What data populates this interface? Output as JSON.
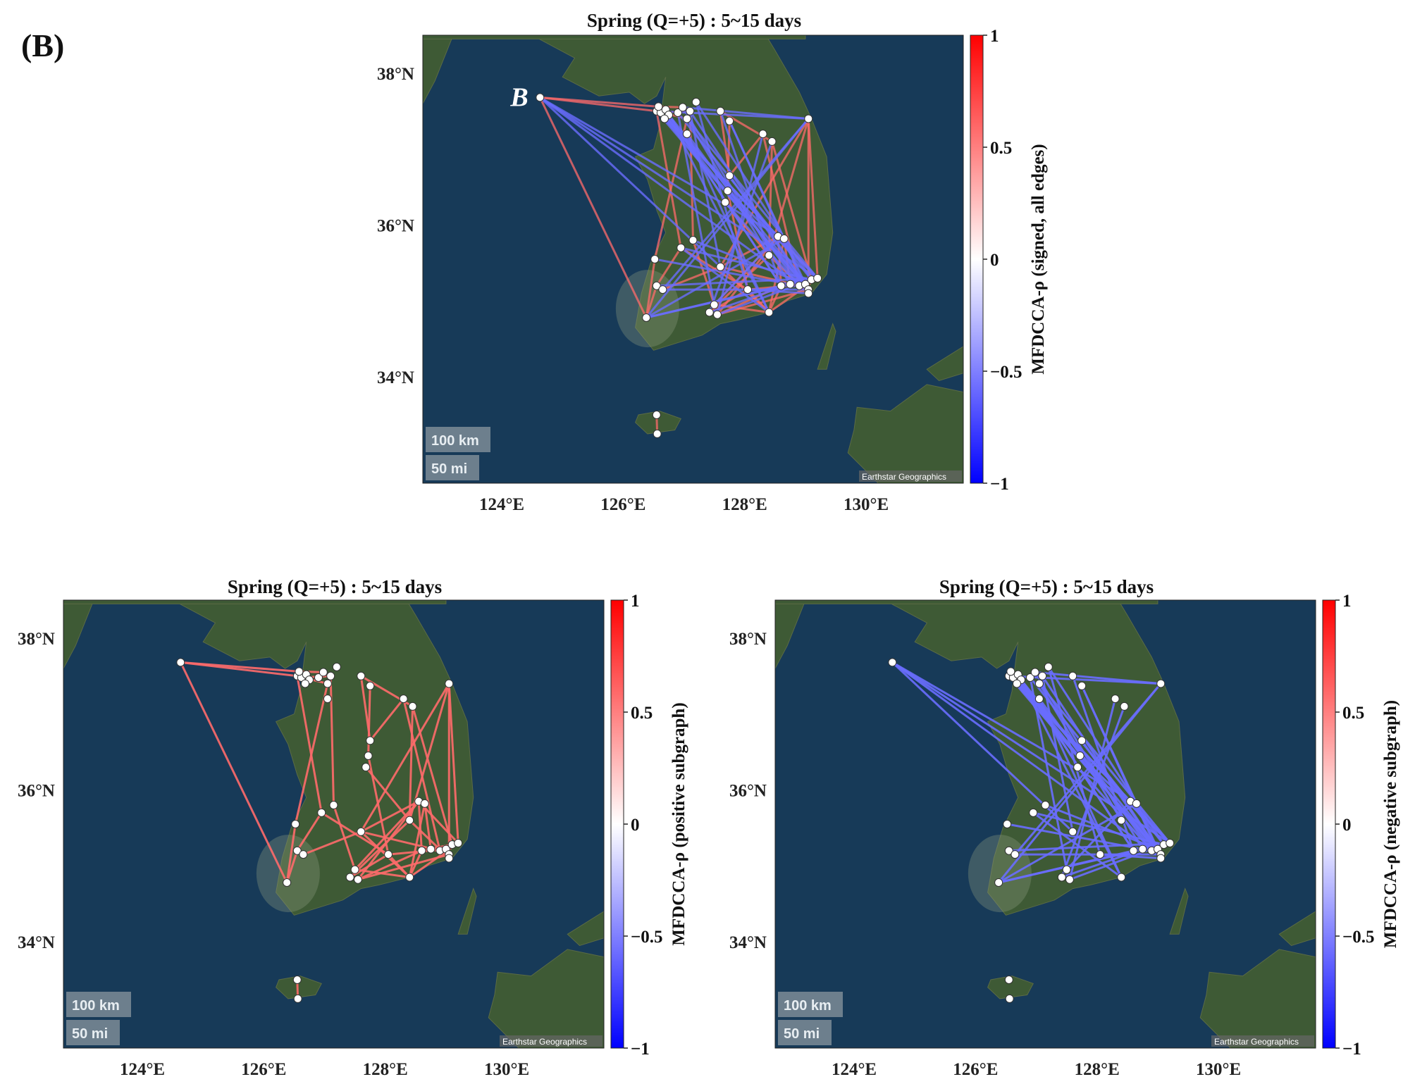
{
  "panel_label": "(B)",
  "annotation_label": "B",
  "map_credit": "Earthstar Geographics",
  "scale_bar": {
    "km": "100 km",
    "mi": "50 mi"
  },
  "axes": {
    "lat_ticks": [
      "38°N",
      "36°N",
      "34°N"
    ],
    "lon_ticks": [
      "124°E",
      "126°E",
      "128°E",
      "130°E"
    ]
  },
  "colorbar": {
    "ticks": [
      "1",
      "0.5",
      "0",
      "−0.5",
      "−1"
    ],
    "colors": {
      "max": "#ff0000",
      "mid": "#ffffff",
      "min": "#0000ff"
    }
  },
  "colors": {
    "positive_edge": "#ff6b6b",
    "negative_edge": "#6a6dff",
    "sea": "#173a58",
    "land": "#3e5a35",
    "node": "#ffffff"
  },
  "panels": [
    {
      "title": "Spring (Q=+5) : 5~15 days",
      "colorbar_label": "MFDCCA-ρ (signed, all edges)",
      "edges": "all"
    },
    {
      "title": "Spring (Q=+5) : 5~15 days",
      "colorbar_label": "MFDCCA-ρ (positive subgraph)",
      "edges": "positive"
    },
    {
      "title": "Spring (Q=+5) : 5~15 days",
      "colorbar_label": "MFDCCA-ρ (negative subgraph)",
      "edges": "negative"
    }
  ],
  "stations": [
    [
      124.63,
      37.68
    ],
    [
      126.55,
      37.5
    ],
    [
      126.62,
      37.48
    ],
    [
      126.7,
      37.52
    ],
    [
      126.58,
      37.56
    ],
    [
      126.75,
      37.45
    ],
    [
      126.68,
      37.4
    ],
    [
      126.9,
      37.48
    ],
    [
      126.98,
      37.55
    ],
    [
      127.05,
      37.4
    ],
    [
      127.1,
      37.5
    ],
    [
      127.2,
      37.62
    ],
    [
      127.05,
      37.2
    ],
    [
      127.6,
      37.5
    ],
    [
      127.75,
      37.37
    ],
    [
      128.3,
      37.2
    ],
    [
      128.45,
      37.1
    ],
    [
      129.05,
      37.4
    ],
    [
      127.75,
      36.65
    ],
    [
      127.72,
      36.45
    ],
    [
      127.68,
      36.3
    ],
    [
      126.95,
      35.7
    ],
    [
      126.52,
      35.55
    ],
    [
      127.15,
      35.8
    ],
    [
      127.6,
      35.45
    ],
    [
      128.05,
      35.15
    ],
    [
      128.55,
      35.85
    ],
    [
      128.65,
      35.82
    ],
    [
      128.4,
      35.6
    ],
    [
      128.6,
      35.2
    ],
    [
      128.75,
      35.22
    ],
    [
      128.9,
      35.2
    ],
    [
      129.0,
      35.22
    ],
    [
      129.05,
      35.15
    ],
    [
      129.1,
      35.28
    ],
    [
      129.2,
      35.3
    ],
    [
      129.05,
      35.1
    ],
    [
      126.55,
      35.2
    ],
    [
      126.65,
      35.15
    ],
    [
      127.5,
      34.95
    ],
    [
      127.55,
      34.82
    ],
    [
      127.42,
      34.85
    ],
    [
      128.4,
      34.85
    ],
    [
      126.38,
      34.78
    ],
    [
      126.55,
      33.5
    ],
    [
      126.56,
      33.25
    ]
  ],
  "edge_samples": {
    "positive": [
      [
        0,
        43
      ],
      [
        0,
        1
      ],
      [
        0,
        4
      ],
      [
        1,
        9
      ],
      [
        2,
        10
      ],
      [
        4,
        8
      ],
      [
        1,
        21
      ],
      [
        9,
        22
      ],
      [
        10,
        23
      ],
      [
        13,
        18
      ],
      [
        13,
        16
      ],
      [
        18,
        15
      ],
      [
        14,
        19
      ],
      [
        17,
        24
      ],
      [
        17,
        28
      ],
      [
        17,
        33
      ],
      [
        17,
        35
      ],
      [
        16,
        28
      ],
      [
        24,
        26
      ],
      [
        24,
        31
      ],
      [
        26,
        35
      ],
      [
        28,
        36
      ],
      [
        29,
        34
      ],
      [
        30,
        33
      ],
      [
        25,
        32
      ],
      [
        25,
        42
      ],
      [
        39,
        26
      ],
      [
        40,
        29
      ],
      [
        41,
        28
      ],
      [
        42,
        35
      ],
      [
        43,
        22
      ],
      [
        43,
        37
      ],
      [
        38,
        24
      ],
      [
        44,
        45
      ],
      [
        21,
        37
      ],
      [
        23,
        39
      ],
      [
        27,
        42
      ],
      [
        26,
        29
      ],
      [
        27,
        30
      ],
      [
        25,
        41
      ],
      [
        40,
        33
      ],
      [
        39,
        42
      ],
      [
        19,
        25
      ],
      [
        20,
        28
      ],
      [
        16,
        34
      ],
      [
        15,
        31
      ],
      [
        29,
        42
      ],
      [
        24,
        42
      ],
      [
        21,
        25
      ],
      [
        26,
        40
      ]
    ],
    "negative": [
      [
        0,
        35
      ],
      [
        0,
        31
      ],
      [
        0,
        24
      ],
      [
        0,
        27
      ],
      [
        1,
        33
      ],
      [
        2,
        35
      ],
      [
        3,
        29
      ],
      [
        4,
        36
      ],
      [
        5,
        32
      ],
      [
        6,
        26
      ],
      [
        7,
        34
      ],
      [
        8,
        30
      ],
      [
        9,
        35
      ],
      [
        10,
        33
      ],
      [
        11,
        25
      ],
      [
        12,
        31
      ],
      [
        13,
        29
      ],
      [
        14,
        36
      ],
      [
        15,
        40
      ],
      [
        16,
        41
      ],
      [
        17,
        43
      ],
      [
        17,
        38
      ],
      [
        1,
        17
      ],
      [
        8,
        17
      ],
      [
        18,
        33
      ],
      [
        19,
        35
      ],
      [
        20,
        31
      ],
      [
        21,
        34
      ],
      [
        22,
        30
      ],
      [
        23,
        32
      ],
      [
        43,
        35
      ],
      [
        43,
        29
      ],
      [
        43,
        27
      ],
      [
        37,
        35
      ],
      [
        38,
        33
      ],
      [
        39,
        26
      ],
      [
        40,
        34
      ],
      [
        41,
        30
      ],
      [
        42,
        21
      ],
      [
        25,
        36
      ],
      [
        3,
        42
      ],
      [
        7,
        39
      ],
      [
        12,
        42
      ],
      [
        11,
        34
      ],
      [
        14,
        32
      ],
      [
        2,
        26
      ],
      [
        5,
        29
      ],
      [
        6,
        33
      ],
      [
        9,
        28
      ],
      [
        10,
        24
      ]
    ]
  }
}
